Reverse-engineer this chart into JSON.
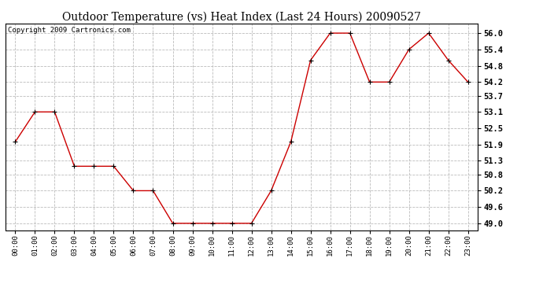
{
  "title": "Outdoor Temperature (vs) Heat Index (Last 24 Hours) 20090527",
  "copyright": "Copyright 2009 Cartronics.com",
  "x_labels": [
    "00:00",
    "01:00",
    "02:00",
    "03:00",
    "04:00",
    "05:00",
    "06:00",
    "07:00",
    "08:00",
    "09:00",
    "10:00",
    "11:00",
    "12:00",
    "13:00",
    "14:00",
    "15:00",
    "16:00",
    "17:00",
    "18:00",
    "19:00",
    "20:00",
    "21:00",
    "22:00",
    "23:00"
  ],
  "y_values": [
    52.0,
    53.1,
    53.1,
    51.1,
    51.1,
    51.1,
    50.2,
    50.2,
    49.0,
    49.0,
    49.0,
    49.0,
    49.0,
    50.2,
    52.0,
    55.0,
    56.0,
    56.0,
    54.2,
    54.2,
    55.4,
    56.0,
    55.0,
    54.2
  ],
  "y_ticks": [
    49.0,
    49.6,
    50.2,
    50.8,
    51.3,
    51.9,
    52.5,
    53.1,
    53.7,
    54.2,
    54.8,
    55.4,
    56.0
  ],
  "ylim": [
    48.75,
    56.35
  ],
  "line_color": "#cc0000",
  "marker": "+",
  "marker_color": "#000000",
  "grid_color": "#bbbbbb",
  "bg_color": "#ffffff",
  "title_fontsize": 10,
  "copyright_fontsize": 6.5,
  "tick_fontsize": 7.5,
  "xtick_fontsize": 6.5
}
